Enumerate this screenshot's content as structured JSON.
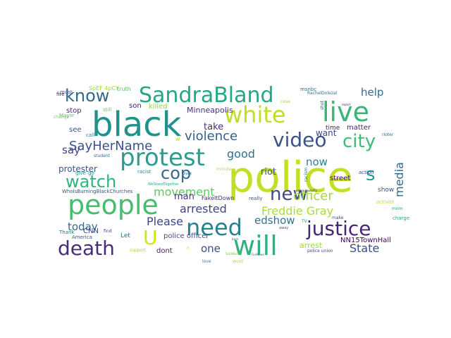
{
  "word_cloud": {
    "words": [
      {
        "text": "police",
        "color": "#c2df23"
      },
      {
        "text": "black",
        "color": "#21918c"
      },
      {
        "text": "live",
        "color": "#35b779"
      },
      {
        "text": "SandraBland",
        "color": "#22a884"
      },
      {
        "text": "people",
        "color": "#44bf70"
      },
      {
        "text": "white",
        "color": "#bddf26"
      },
      {
        "text": "protest",
        "color": "#2a9d8f"
      },
      {
        "text": "will",
        "color": "#2db27d"
      },
      {
        "text": "need",
        "color": "#26828e"
      },
      {
        "text": "justice",
        "color": "#482475"
      },
      {
        "text": "death",
        "color": "#472c7a"
      },
      {
        "text": "video",
        "color": "#3b528b"
      },
      {
        "text": "city",
        "color": "#3fbc73"
      },
      {
        "text": "know",
        "color": "#31688e"
      },
      {
        "text": "new",
        "color": "#3e4a89"
      },
      {
        "text": "cop",
        "color": "#31688e"
      },
      {
        "text": "watch",
        "color": "#2fb47c"
      },
      {
        "text": "U",
        "color": "#d2e21b"
      },
      {
        "text": "s",
        "color": "#1f9e89"
      },
      {
        "text": "violence",
        "color": "#355f8d"
      },
      {
        "text": "officer",
        "color": "#a0da39"
      },
      {
        "text": "SayHerName",
        "color": "#3b528b"
      },
      {
        "text": "Freddie Gray",
        "color": "#addc30"
      },
      {
        "text": "arrested",
        "color": "#414487"
      },
      {
        "text": "movement",
        "color": "#5ec962"
      },
      {
        "text": "Please",
        "color": "#404688"
      },
      {
        "text": "media",
        "color": "#31688e"
      },
      {
        "text": "good",
        "color": "#2c728e"
      },
      {
        "text": "now",
        "color": "#25848e"
      },
      {
        "text": "help",
        "color": "#2e6e8e"
      },
      {
        "text": "today",
        "color": "#31688e"
      },
      {
        "text": "edshow",
        "color": "#2a788e"
      },
      {
        "text": "State",
        "color": "#3e4989"
      },
      {
        "text": "one",
        "color": "#3e4a89"
      },
      {
        "text": "say",
        "color": "#404588"
      },
      {
        "text": "take",
        "color": "#472d7b"
      },
      {
        "text": "man",
        "color": "#453781"
      },
      {
        "text": "riot",
        "color": "#3d4e8a"
      },
      {
        "text": "want",
        "color": "#3f4788"
      },
      {
        "text": "protester",
        "color": "#39568c"
      },
      {
        "text": "Minneapolis",
        "color": "#463480"
      },
      {
        "text": "killed",
        "color": "#8fd744"
      },
      {
        "text": "son",
        "color": "#482173"
      },
      {
        "text": "stop",
        "color": "#482878"
      },
      {
        "text": "see",
        "color": "#3a538b"
      },
      {
        "text": "arrest",
        "color": "#9dd93b"
      },
      {
        "text": "police officer",
        "color": "#3e4c8a"
      },
      {
        "text": "dont",
        "color": "#482071"
      },
      {
        "text": "NN15TownHall",
        "color": "#440154"
      },
      {
        "text": "matter",
        "color": "#481b6d"
      },
      {
        "text": "time",
        "color": "#481f70"
      },
      {
        "text": "street",
        "color": "#481769"
      },
      {
        "text": "show",
        "color": "#3b518b"
      },
      {
        "text": "CNN",
        "color": "#3f4889"
      },
      {
        "text": "Let",
        "color": "#2d708e"
      },
      {
        "text": "FakeItDown",
        "color": "#472c7a"
      },
      {
        "text": "WhoIsBurningBlackChurches",
        "color": "#3b518b"
      },
      {
        "text": "SpEF 4pCY",
        "color": "#a2da37"
      },
      {
        "text": "truth",
        "color": "#56c667"
      },
      {
        "text": "fire",
        "color": "#440154"
      },
      {
        "text": "must",
        "color": "#3b518b"
      },
      {
        "text": "change",
        "color": "#7ad151"
      },
      {
        "text": "still",
        "color": "#6ccd5a"
      },
      {
        "text": "call",
        "color": "#287d8e"
      },
      {
        "text": "student",
        "color": "#2c728e"
      },
      {
        "text": "Mayor",
        "color": "#5ec962"
      },
      {
        "text": "give",
        "color": "#1f9a8a"
      },
      {
        "text": "go",
        "color": "#25848e"
      },
      {
        "text": "racist",
        "color": "#23898e"
      },
      {
        "text": "Thank",
        "color": "#2e6f8e"
      },
      {
        "text": "America",
        "color": "#3b528b"
      },
      {
        "text": "find",
        "color": "#414287"
      },
      {
        "text": "support",
        "color": "#a5db36"
      },
      {
        "text": "WeStandTogether",
        "color": "#27ad81"
      },
      {
        "text": "w",
        "color": "#b5de2b"
      },
      {
        "text": "minute",
        "color": "#b5de2b"
      },
      {
        "text": "really",
        "color": "#39568c"
      },
      {
        "text": "love",
        "color": "#24878e"
      },
      {
        "text": "word",
        "color": "#a8db34"
      },
      {
        "text": "Solidarity",
        "color": "#7ad151"
      },
      {
        "text": "FireNews",
        "color": "#2c728e"
      },
      {
        "text": "away",
        "color": "#3b528b"
      },
      {
        "text": "TV",
        "color": "#21918c"
      },
      {
        "text": "activist",
        "color": "#c8e020"
      },
      {
        "text": "mom",
        "color": "#1fa088"
      },
      {
        "text": "charge",
        "color": "#29af7f"
      },
      {
        "text": "make",
        "color": "#3d4d8a"
      },
      {
        "text": "police union",
        "color": "#424086"
      },
      {
        "text": "action",
        "color": "#3e4a89"
      },
      {
        "text": "rioter",
        "color": "#2e6e8e"
      },
      {
        "text": "msnbc",
        "color": "#2c728e"
      },
      {
        "text": "RachelDolezal",
        "color": "#2a788e"
      },
      {
        "text": "case",
        "color": "#9fda3a"
      },
      {
        "text": "shot",
        "color": "#3e4989"
      },
      {
        "text": "report",
        "color": "#482071"
      },
      {
        "text": "racism",
        "color": "#2a788e"
      },
      {
        "text": "police brutality",
        "color": "#46307e"
      },
      {
        "text": "black",
        "color": "#2c728e"
      },
      {
        "text": "back",
        "color": "#3b528b"
      },
      {
        "text": "rt",
        "color": "#d8e219"
      }
    ]
  }
}
